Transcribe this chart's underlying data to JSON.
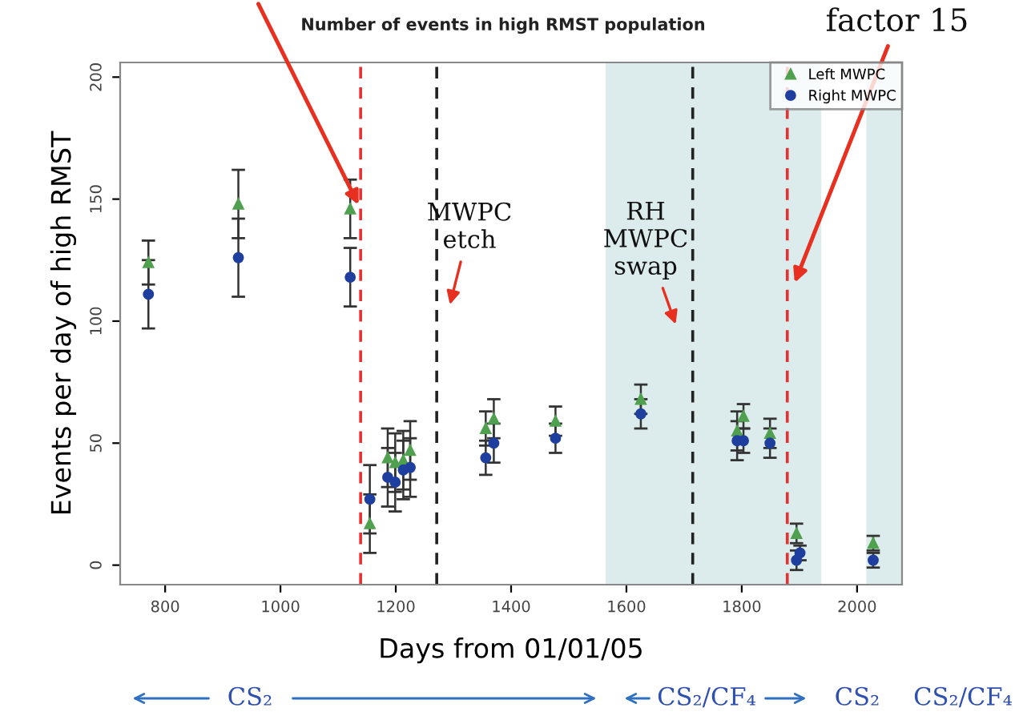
{
  "chart_data": {
    "type": "scatter",
    "title": "Number of events in high RMST population",
    "xlabel": "Days from 01/01/05",
    "ylabel": "Events per day of high RMST",
    "series": [
      {
        "name": "Left MWPC",
        "color": "#4fa04f",
        "marker": "triangle",
        "x": [
          771,
          927,
          1121,
          1155,
          1186,
          1199,
          1213,
          1225,
          1356,
          1370,
          1477,
          1625,
          1792,
          1803,
          1849,
          1895,
          1901,
          2028
        ],
        "values": [
          124,
          148,
          146,
          17,
          44,
          42,
          43,
          47,
          56,
          60,
          59,
          68,
          55,
          61,
          54,
          13,
          null,
          9
        ],
        "errors": [
          9,
          14,
          12,
          12,
          12,
          12,
          12,
          12,
          7,
          8,
          6,
          6,
          8,
          5,
          6,
          4,
          null,
          3
        ]
      },
      {
        "name": "Right MWPC",
        "color": "#1f3f9f",
        "marker": "circle",
        "x": [
          771,
          927,
          1121,
          1155,
          1186,
          1199,
          1213,
          1225,
          1356,
          1370,
          1477,
          1625,
          1792,
          1803,
          1849,
          1895,
          1901,
          2028
        ],
        "values": [
          111,
          126,
          118,
          27,
          36,
          34,
          39,
          40,
          44,
          50,
          52,
          62,
          51,
          51,
          50,
          2,
          5,
          2
        ],
        "errors": [
          14,
          16,
          12,
          14,
          12,
          12,
          12,
          12,
          7,
          8,
          6,
          6,
          8,
          5,
          6,
          4,
          3,
          3
        ]
      }
    ],
    "xlim": [
      722,
      2078
    ],
    "ylim": [
      -8,
      206
    ],
    "xticks": [
      800,
      1000,
      1200,
      1400,
      1600,
      1800,
      2000
    ],
    "yticks": [
      0,
      50,
      100,
      150,
      200
    ],
    "grid": false,
    "legend": "top right",
    "ref_lines": [
      {
        "axis": "x",
        "value": 1139,
        "color": "#e83030",
        "line_style": "dashed"
      },
      {
        "axis": "x",
        "value": 1271,
        "color": "#222222",
        "line_style": "dashed"
      },
      {
        "axis": "x",
        "value": 1715,
        "color": "#222222",
        "line_style": "dashed"
      },
      {
        "axis": "x",
        "value": 1879,
        "color": "#e83030",
        "line_style": "dashed"
      }
    ],
    "bands": [
      {
        "axis": "x",
        "from": 1564,
        "to": 1938,
        "color": "#dcecec"
      },
      {
        "axis": "x",
        "from": 2016,
        "to": 2078,
        "color": "#dcecec"
      }
    ],
    "annotations": [
      "MWPC\netch",
      "RH\nMWPC\nswap",
      "factor 15",
      "CS₂",
      "CS₂/CF₄",
      "CS₂",
      "CS₂/CF₄"
    ]
  }
}
